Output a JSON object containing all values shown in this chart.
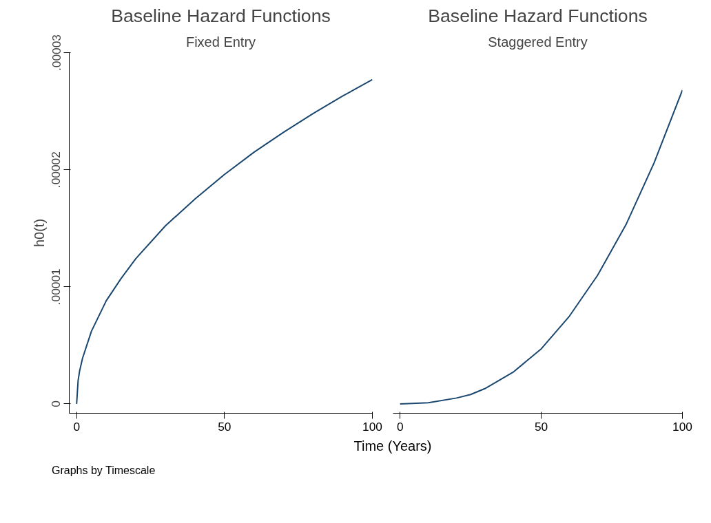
{
  "chart_data": [
    {
      "type": "line",
      "title": "Baseline Hazard Functions",
      "subtitle": "Fixed Entry",
      "xlabel": "Time (Years)",
      "ylabel": "h0(t)",
      "annotations": [
        "Graphs by Timescale"
      ],
      "x": [
        0,
        0.5,
        1,
        2,
        5,
        10,
        15,
        20,
        30,
        40,
        50,
        60,
        70,
        80,
        90,
        100
      ],
      "series": [
        {
          "color": "#1a476f",
          "values": [
            0,
            2e-06,
            2.8e-06,
            3.9e-06,
            6.2e-06,
            8.8e-06,
            1.07e-05,
            1.24e-05,
            1.52e-05,
            1.75e-05,
            1.96e-05,
            2.15e-05,
            2.32e-05,
            2.48e-05,
            2.63e-05,
            2.77e-05
          ]
        }
      ],
      "xlim": [
        -2.5,
        100
      ],
      "xticks": [
        0,
        50,
        100
      ],
      "ylim": [
        -8e-07,
        3e-05
      ],
      "yticks": [
        0,
        {
          "value": 1e-05,
          "label": ".00001"
        },
        {
          "value": 2e-05,
          "label": ".00002"
        },
        {
          "value": 3e-05,
          "label": ".00003"
        }
      ],
      "grid": false,
      "line_style": "solid"
    },
    {
      "type": "line",
      "title": "Baseline Hazard Functions",
      "subtitle": "Staggered Entry",
      "x": [
        0,
        10,
        20,
        25,
        30,
        40,
        50,
        60,
        70,
        80,
        90,
        100
      ],
      "series": [
        {
          "color": "#1a476f",
          "values": [
            0,
            1e-07,
            5e-07,
            8e-07,
            1.3e-06,
            2.7e-06,
            4.7e-06,
            7.5e-06,
            1.1e-05,
            1.53e-05,
            2.06e-05,
            2.68e-05
          ]
        }
      ],
      "xlim": [
        -2.5,
        100
      ],
      "xticks": [
        0,
        50,
        100
      ],
      "ylim": [
        -8e-07,
        3e-05
      ],
      "tick_labels": "x",
      "grid": false,
      "line_style": "solid"
    }
  ]
}
